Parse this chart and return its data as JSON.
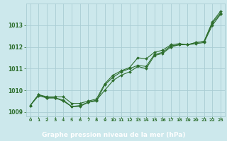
{
  "xlabel": "Graphe pression niveau de la mer (hPa)",
  "ylim": [
    1008.8,
    1014.0
  ],
  "xlim": [
    -0.5,
    23.5
  ],
  "yticks": [
    1009,
    1010,
    1011,
    1012,
    1013
  ],
  "xticks": [
    0,
    1,
    2,
    3,
    4,
    5,
    6,
    7,
    8,
    9,
    10,
    11,
    12,
    13,
    14,
    15,
    16,
    17,
    18,
    19,
    20,
    21,
    22,
    23
  ],
  "background_color": "#cce8ec",
  "grid_color": "#aacdd4",
  "line_color": "#2d6e2d",
  "label_bar_color": "#2d6e2d",
  "label_text_color": "#ffffff",
  "line1": [
    1009.3,
    1009.8,
    1009.7,
    1009.7,
    1009.7,
    1009.4,
    1009.4,
    1009.5,
    1009.6,
    1010.3,
    1010.7,
    1010.9,
    1011.05,
    1011.5,
    1011.45,
    1011.75,
    1011.85,
    1012.1,
    1012.15,
    1012.1,
    1012.2,
    1012.25,
    1013.15,
    1013.65
  ],
  "line2": [
    1009.3,
    1009.8,
    1009.65,
    1009.65,
    1009.55,
    1009.25,
    1009.3,
    1009.45,
    1009.5,
    1010.25,
    1010.6,
    1010.85,
    1011.0,
    1011.15,
    1011.1,
    1011.65,
    1011.75,
    1012.05,
    1012.1,
    1012.1,
    1012.2,
    1012.25,
    1013.1,
    1013.55
  ],
  "line3": [
    1009.3,
    1009.75,
    1009.65,
    1009.65,
    1009.5,
    1009.25,
    1009.25,
    1009.45,
    1009.55,
    1010.0,
    1010.45,
    1010.7,
    1010.85,
    1011.1,
    1011.0,
    1011.6,
    1011.7,
    1012.0,
    1012.1,
    1012.1,
    1012.15,
    1012.2,
    1013.0,
    1013.5
  ]
}
